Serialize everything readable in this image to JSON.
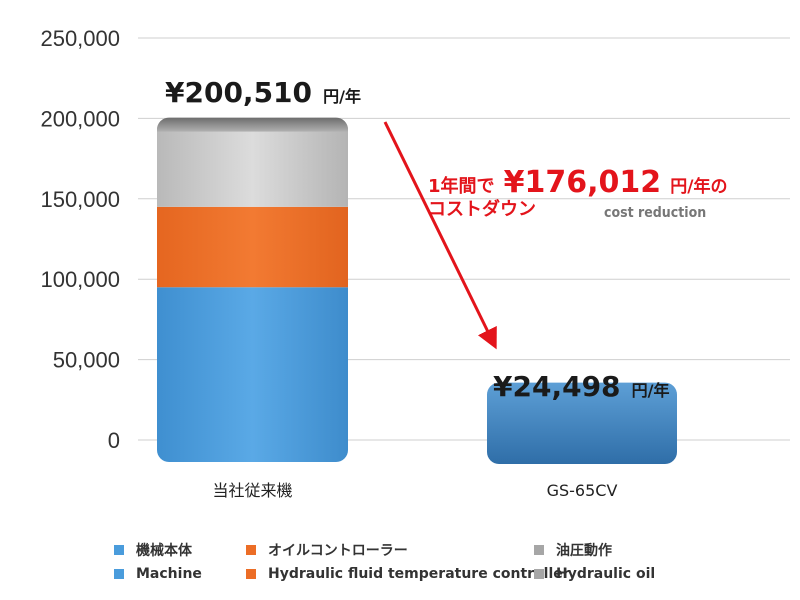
{
  "chart_data": {
    "type": "bar",
    "stacked": true,
    "categories": [
      "当社従来機",
      "GS-65CV"
    ],
    "series": [
      {
        "name": "機械本体 Machine",
        "color": "#4a9cdc",
        "values": [
          95000,
          24498
        ]
      },
      {
        "name": "オイルコントローラー Hydraulic fluid temperature controller",
        "color": "#ec6d26",
        "values": [
          50000,
          0
        ]
      },
      {
        "name": "油圧動作 Hydraulic oil",
        "color": "#c0c0c0",
        "values": [
          55510,
          0
        ]
      }
    ],
    "ylim": [
      0,
      250000
    ],
    "yticks": [
      "0",
      "50,000",
      "100,000",
      "150,000",
      "200,000",
      "250,000"
    ],
    "grid": true,
    "legend_position": "bottom"
  },
  "annotations": {
    "total_left_value": "¥200,510",
    "total_left_unit": "円/年",
    "total_right_value": "¥24,498",
    "total_right_unit": "円/年",
    "reduction_line1_prefix": "1年間で",
    "reduction_value": "¥176,012",
    "reduction_line1_suffix": "円/年の",
    "reduction_line2": "コストダウン",
    "reduction_en": "cost reduction"
  },
  "legend": {
    "row1": [
      {
        "label": "機械本体",
        "color": "#4a9cdc"
      },
      {
        "label": "オイルコントローラー",
        "color": "#ec6d26"
      },
      {
        "label": "油圧動作",
        "color": "#a6a6a6"
      }
    ],
    "row2": [
      {
        "label": "Machine",
        "color": "#4a9cdc"
      },
      {
        "label": "Hydraulic fluid temperature controller",
        "color": "#ec6d26"
      },
      {
        "label": "Hydraulic oil",
        "color": "#a6a6a6"
      }
    ]
  }
}
